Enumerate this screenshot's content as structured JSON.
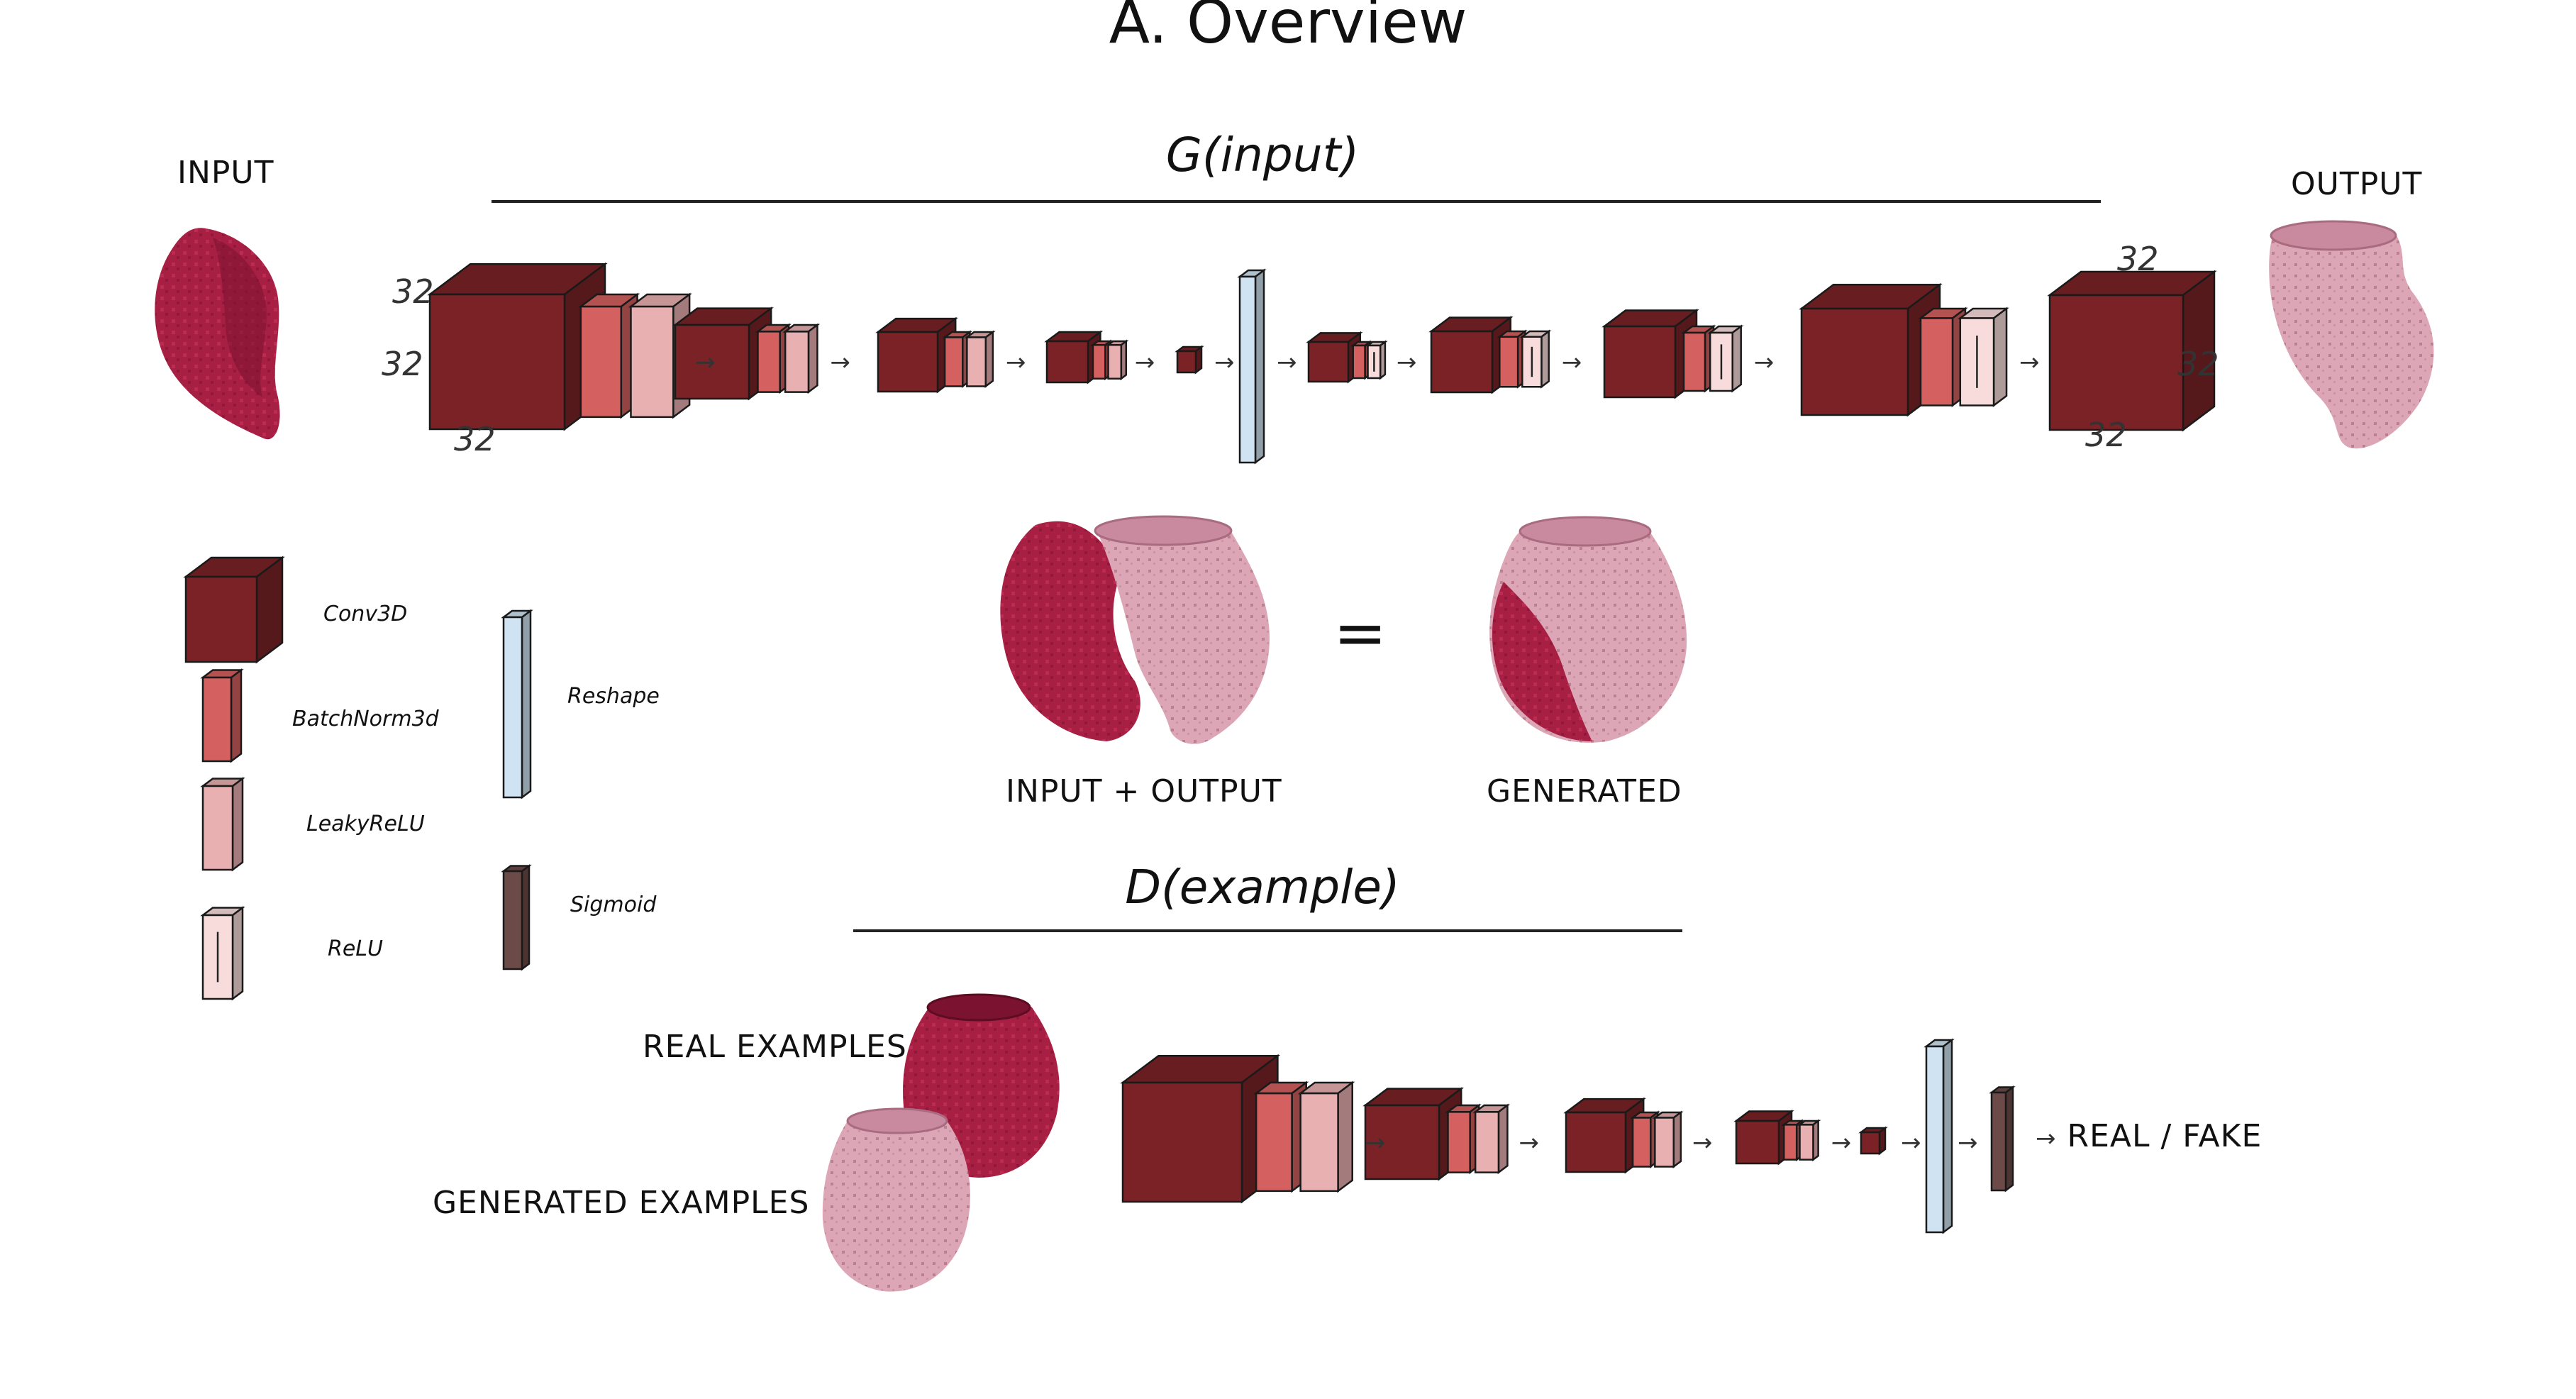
{
  "title": "A. Overview",
  "generator": {
    "label": "G(input)",
    "input_label": "INPUT",
    "output_label": "OUTPUT",
    "input_dims": [
      "32",
      "32",
      "32"
    ],
    "output_dims": [
      "32",
      "32",
      "32"
    ]
  },
  "composition": {
    "left_label": "INPUT + OUTPUT",
    "equals": "=",
    "right_label": "GENERATED"
  },
  "discriminator": {
    "label": "D(example)",
    "real_label": "REAL EXAMPLES",
    "generated_label": "GENERATED  EXAMPLES",
    "result_label": "REAL / FAKE"
  },
  "legend": {
    "conv": "Conv3D",
    "batchnorm": "BatchNorm3d",
    "leaky": "LeakyReLU",
    "relu": "ReLU",
    "reshape": "Reshape",
    "sigmoid": "Sigmoid"
  },
  "arrow": "→",
  "colors": {
    "conv": "#7a2226",
    "batchnorm": "#d4605f",
    "leaky": "#e9b0b2",
    "relu": "#f7dcdb",
    "reshape": "#cfe3f2",
    "sigmoid": "#6b4a48",
    "real_pot": "#9b1c3c",
    "generated_pot": "#d9a3b5"
  }
}
